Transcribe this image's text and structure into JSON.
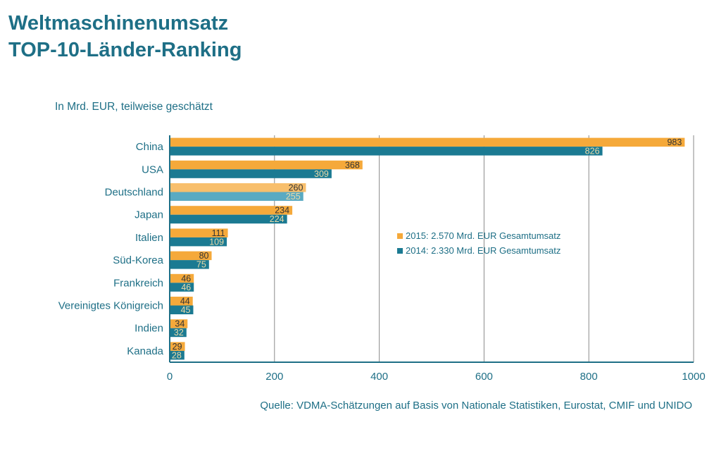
{
  "header": {
    "title_line1": "Weltmaschinenumsatz",
    "title_line2": "TOP-10-Länder-Ranking",
    "unit_note": "In Mrd. EUR, teilweise geschätzt"
  },
  "source": "Quelle:  VDMA-Schätzungen auf Basis von Nationale Statistiken, Eurostat, CMIF und UNIDO",
  "colors": {
    "series_2015": "#f5a93a",
    "series_2014": "#1b7a92",
    "highlight_2015": "#f8bf6c",
    "highlight_2014": "#5aaac2",
    "axis": "#1e6f86",
    "grid": "#8a8a8a",
    "text": "#1e6f86"
  },
  "chart_data": {
    "type": "bar",
    "orientation": "horizontal",
    "categories": [
      "China",
      "USA",
      "Deutschland",
      "Japan",
      "Italien",
      "Süd-Korea",
      "Frankreich",
      "Vereinigtes Königreich",
      "Indien",
      "Kanada"
    ],
    "highlight_category": "Deutschland",
    "series": [
      {
        "name": "2015: 2.570 Mrd. EUR Gesamtumsatz",
        "values": [
          983,
          368,
          260,
          234,
          111,
          80,
          46,
          44,
          34,
          29
        ]
      },
      {
        "name": "2014: 2.330 Mrd. EUR Gesamtumsatz",
        "values": [
          826,
          309,
          255,
          224,
          109,
          75,
          46,
          45,
          32,
          28
        ]
      }
    ],
    "xlim": [
      0,
      1000
    ],
    "xticks": [
      0,
      200,
      400,
      600,
      800,
      1000
    ],
    "grid": true,
    "legend_position": "center-right"
  }
}
